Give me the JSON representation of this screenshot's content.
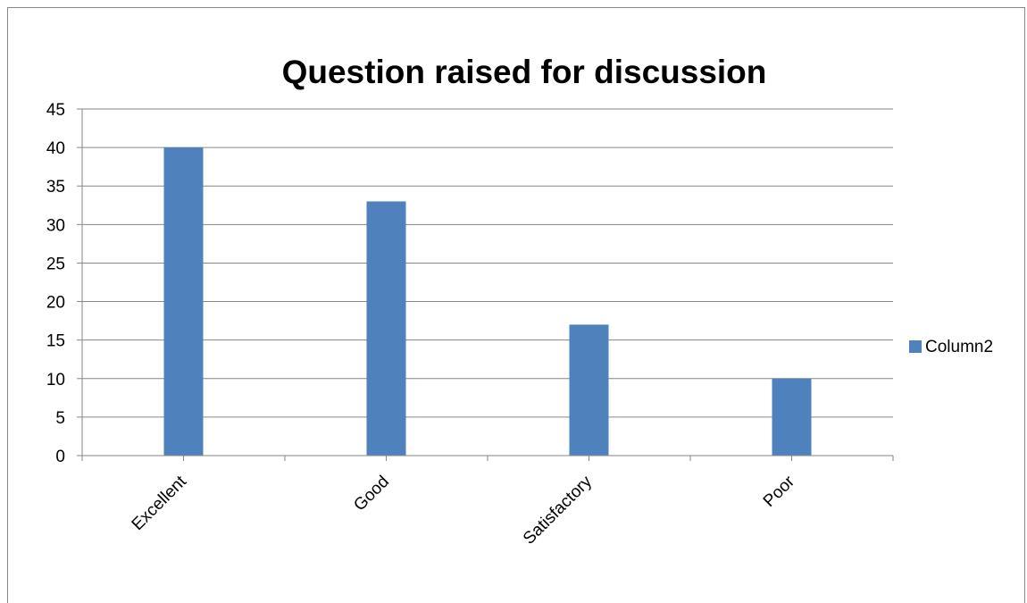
{
  "chart_data": {
    "type": "bar",
    "title": "Question raised for discussion",
    "categories": [
      "Excellent",
      "Good",
      "Satisfactory",
      "Poor"
    ],
    "series": [
      {
        "name": "Column2",
        "values": [
          40,
          33,
          17,
          10
        ],
        "color": "#4f81bd"
      }
    ],
    "ylim": [
      0,
      45
    ],
    "yticks": [
      0,
      5,
      10,
      15,
      20,
      25,
      30,
      35,
      40,
      45
    ],
    "grid": true,
    "legend": "right"
  }
}
